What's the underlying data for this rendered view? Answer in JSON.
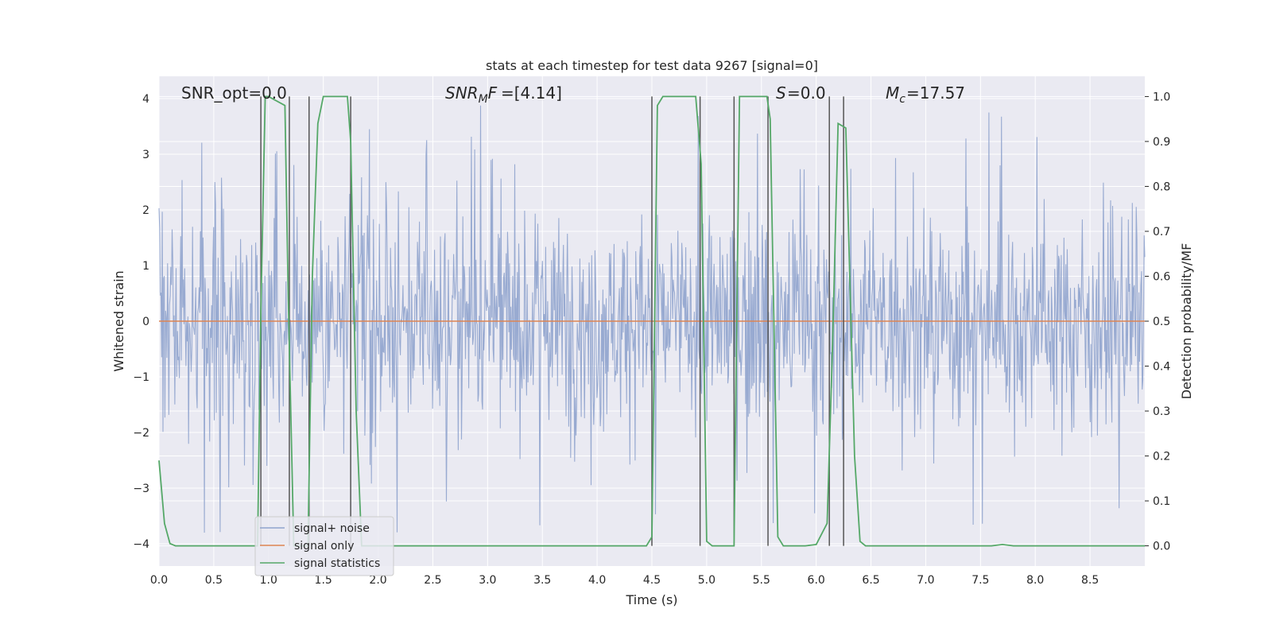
{
  "chart_data": {
    "type": "line",
    "title": "stats at each timestep for test data 9267 [signal=0]",
    "xlabel": "Time (s)",
    "ylabel": "Whitened strain",
    "y2label": "Detection probability/MF",
    "xlim": [
      0.0,
      9.0
    ],
    "ylim": [
      -4.4,
      4.4
    ],
    "y2lim": [
      -0.045,
      1.045
    ],
    "xticks": [
      "0.0",
      "0.5",
      "1.0",
      "1.5",
      "2.0",
      "2.5",
      "3.0",
      "3.5",
      "4.0",
      "4.5",
      "5.0",
      "5.5",
      "6.0",
      "6.5",
      "7.0",
      "7.5",
      "8.0",
      "8.5"
    ],
    "yticks": [
      "4",
      "3",
      "2",
      "1",
      "0",
      "−1",
      "−2",
      "−3",
      "−4"
    ],
    "y2ticks": [
      "1.0",
      "0.9",
      "0.8",
      "0.7",
      "0.6",
      "0.5",
      "0.4",
      "0.3",
      "0.2",
      "0.1",
      "0.0"
    ],
    "grid": true,
    "legend_position": "lower-left",
    "annotations": {
      "snr_opt": "SNR_opt=0.0",
      "snr_mf": "=[4.14]",
      "s": "=0.0",
      "mc": "=17.57"
    },
    "series": [
      {
        "name": "signal+ noise",
        "color": "#8fa3cd",
        "kind": "noise",
        "noise_envelope": {
          "typical_abs_max": 2.0,
          "peak_max": 4.0,
          "peak_min": -3.8
        }
      },
      {
        "name": "signal only",
        "color": "#dd8452",
        "kind": "line",
        "x": [
          0.0,
          9.0
        ],
        "y": [
          0.0,
          0.0
        ]
      },
      {
        "name": "signal statistics",
        "color": "#55a868",
        "axis": "right",
        "x": [
          0.0,
          0.05,
          0.1,
          0.15,
          0.9,
          0.93,
          0.97,
          1.0,
          1.15,
          1.18,
          1.23,
          1.25,
          1.36,
          1.4,
          1.45,
          1.5,
          1.72,
          1.75,
          1.8,
          1.85,
          2.0,
          4.1,
          4.45,
          4.5,
          4.55,
          4.6,
          4.9,
          4.95,
          5.0,
          5.05,
          5.2,
          5.25,
          5.3,
          5.35,
          5.55,
          5.58,
          5.65,
          5.7,
          5.9,
          6.0,
          6.1,
          6.15,
          6.2,
          6.27,
          6.35,
          6.4,
          6.45,
          7.6,
          7.7,
          7.8,
          9.0
        ],
        "y": [
          0.19,
          0.05,
          0.005,
          0.0,
          0.0,
          0.52,
          1.0,
          1.0,
          0.98,
          0.55,
          0.0,
          0.0,
          0.0,
          0.6,
          0.94,
          1.0,
          1.0,
          0.9,
          0.3,
          0.0,
          0.0,
          0.0,
          0.0,
          0.02,
          0.98,
          1.0,
          1.0,
          0.85,
          0.01,
          0.0,
          0.0,
          0.0,
          1.0,
          1.0,
          1.0,
          0.95,
          0.02,
          0.0,
          0.0,
          0.003,
          0.05,
          0.45,
          0.94,
          0.93,
          0.2,
          0.01,
          0.0,
          0.0,
          0.003,
          0.0,
          0.0
        ]
      }
    ],
    "vlines_x": [
      0.93,
      1.19,
      1.37,
      1.75,
      4.5,
      4.94,
      5.25,
      5.56,
      6.12,
      6.25
    ]
  }
}
